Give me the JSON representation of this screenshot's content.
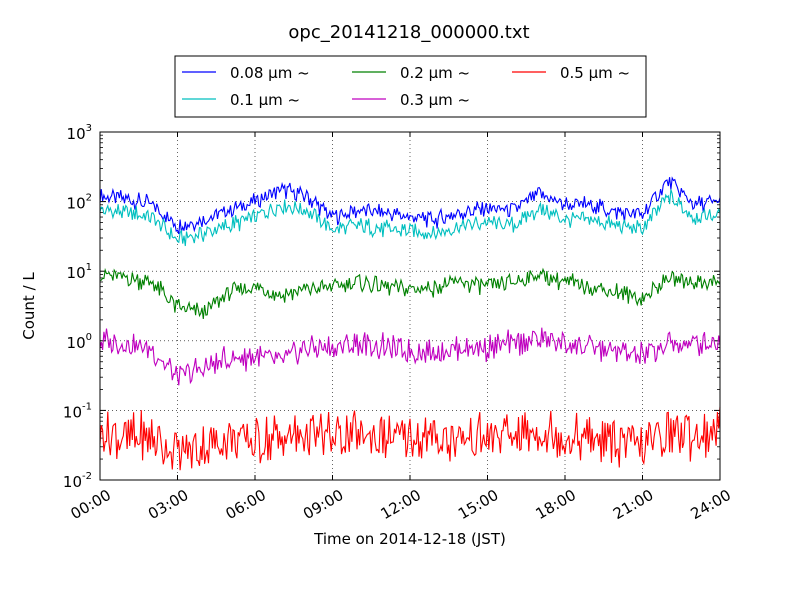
{
  "chart_data": {
    "type": "line",
    "title": "opc_20141218_000000.txt",
    "xlabel": "Time on 2014-12-18 (JST)",
    "ylabel": "Count / L",
    "y_scale": "log",
    "ylim": [
      0.01,
      1000
    ],
    "xlim": [
      "00:00",
      "24:00"
    ],
    "x_ticks": [
      "00:00",
      "03:00",
      "06:00",
      "09:00",
      "12:00",
      "15:00",
      "18:00",
      "21:00",
      "24:00"
    ],
    "y_ticks": [
      {
        "base": "10",
        "exp": "-2"
      },
      {
        "base": "10",
        "exp": "-1"
      },
      {
        "base": "10",
        "exp": "0"
      },
      {
        "base": "10",
        "exp": "1"
      },
      {
        "base": "10",
        "exp": "2"
      },
      {
        "base": "10",
        "exp": "3"
      }
    ],
    "grid": true,
    "legend_position": "top",
    "x_hours": [
      0,
      1,
      2,
      3,
      4,
      5,
      6,
      7,
      8,
      9,
      10,
      11,
      12,
      13,
      14,
      15,
      16,
      17,
      18,
      19,
      20,
      21,
      22,
      23,
      24
    ],
    "series": [
      {
        "name": "0.08 µm ~",
        "color": "#0000ff",
        "values": [
          120,
          110,
          90,
          45,
          55,
          75,
          100,
          150,
          120,
          60,
          75,
          70,
          60,
          55,
          70,
          80,
          75,
          130,
          90,
          90,
          70,
          65,
          200,
          90,
          100
        ]
      },
      {
        "name": "0.1 µm ~",
        "color": "#00bfbf",
        "values": [
          75,
          70,
          60,
          28,
          35,
          45,
          60,
          90,
          75,
          40,
          45,
          40,
          38,
          35,
          45,
          50,
          45,
          80,
          55,
          55,
          45,
          40,
          120,
          60,
          65
        ]
      },
      {
        "name": "0.2 µm ~",
        "color": "#008000",
        "values": [
          9,
          8,
          7,
          3,
          2.5,
          5,
          6,
          4.5,
          5.5,
          6,
          7,
          6,
          5.5,
          6,
          7,
          6,
          7,
          9,
          7,
          6,
          5,
          4,
          8,
          7,
          7
        ]
      },
      {
        "name": "0.3 µm ~",
        "color": "#bf00bf",
        "values": [
          1.0,
          0.9,
          0.75,
          0.3,
          0.4,
          0.55,
          0.6,
          0.5,
          0.8,
          0.8,
          0.9,
          0.8,
          0.7,
          0.7,
          0.8,
          0.8,
          0.9,
          1.1,
          0.9,
          0.8,
          0.7,
          0.6,
          0.9,
          0.9,
          1.0
        ]
      },
      {
        "name": "0.5 µm ~",
        "color": "#ff0000",
        "values": [
          0.05,
          0.04,
          0.04,
          0.025,
          0.03,
          0.04,
          0.035,
          0.04,
          0.045,
          0.04,
          0.045,
          0.04,
          0.04,
          0.04,
          0.04,
          0.04,
          0.045,
          0.05,
          0.04,
          0.04,
          0.035,
          0.03,
          0.05,
          0.045,
          0.05
        ]
      }
    ]
  }
}
